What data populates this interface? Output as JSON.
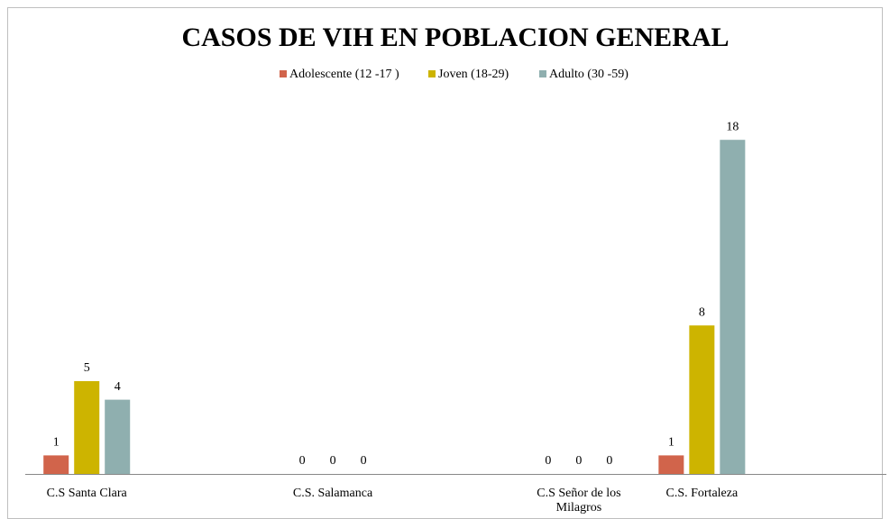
{
  "chart_data": {
    "type": "bar",
    "title": "CASOS DE VIH EN POBLACION GENERAL",
    "categories": [
      "C.S Santa Clara",
      null,
      "C.S. Salamanca",
      null,
      "C.S Señor de los Milagros",
      "C.S. Fortaleza",
      null
    ],
    "series": [
      {
        "name": "Adolescente (12 -17 )",
        "color": "#d1644b",
        "values": [
          1,
          null,
          0,
          null,
          0,
          1,
          null
        ]
      },
      {
        "name": "Joven (18-29)",
        "color": "#cdb400",
        "values": [
          5,
          null,
          0,
          null,
          0,
          8,
          null
        ]
      },
      {
        "name": "Adulto (30 -59)",
        "color": "#8fafaf",
        "values": [
          4,
          null,
          0,
          null,
          0,
          18,
          null
        ]
      }
    ],
    "ylim": [
      0,
      20
    ]
  }
}
